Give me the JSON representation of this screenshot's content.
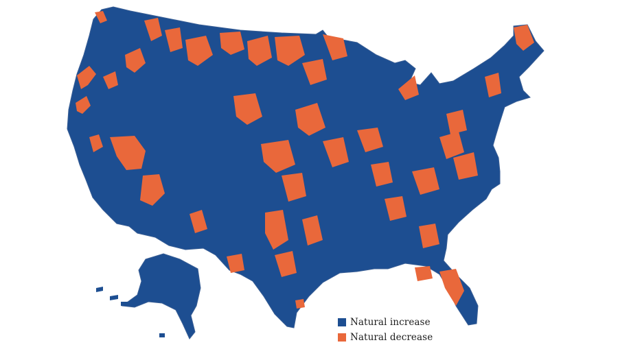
{
  "legend": {
    "items": [
      {
        "label": "Natural increase",
        "color": "#1d4e91"
      },
      {
        "label": "Natural decrease",
        "color": "#e9683b"
      }
    ]
  },
  "colors": {
    "increase": "#1d4e91",
    "decrease": "#e9683b",
    "border": "#3a5f95",
    "background": "#ffffff"
  }
}
